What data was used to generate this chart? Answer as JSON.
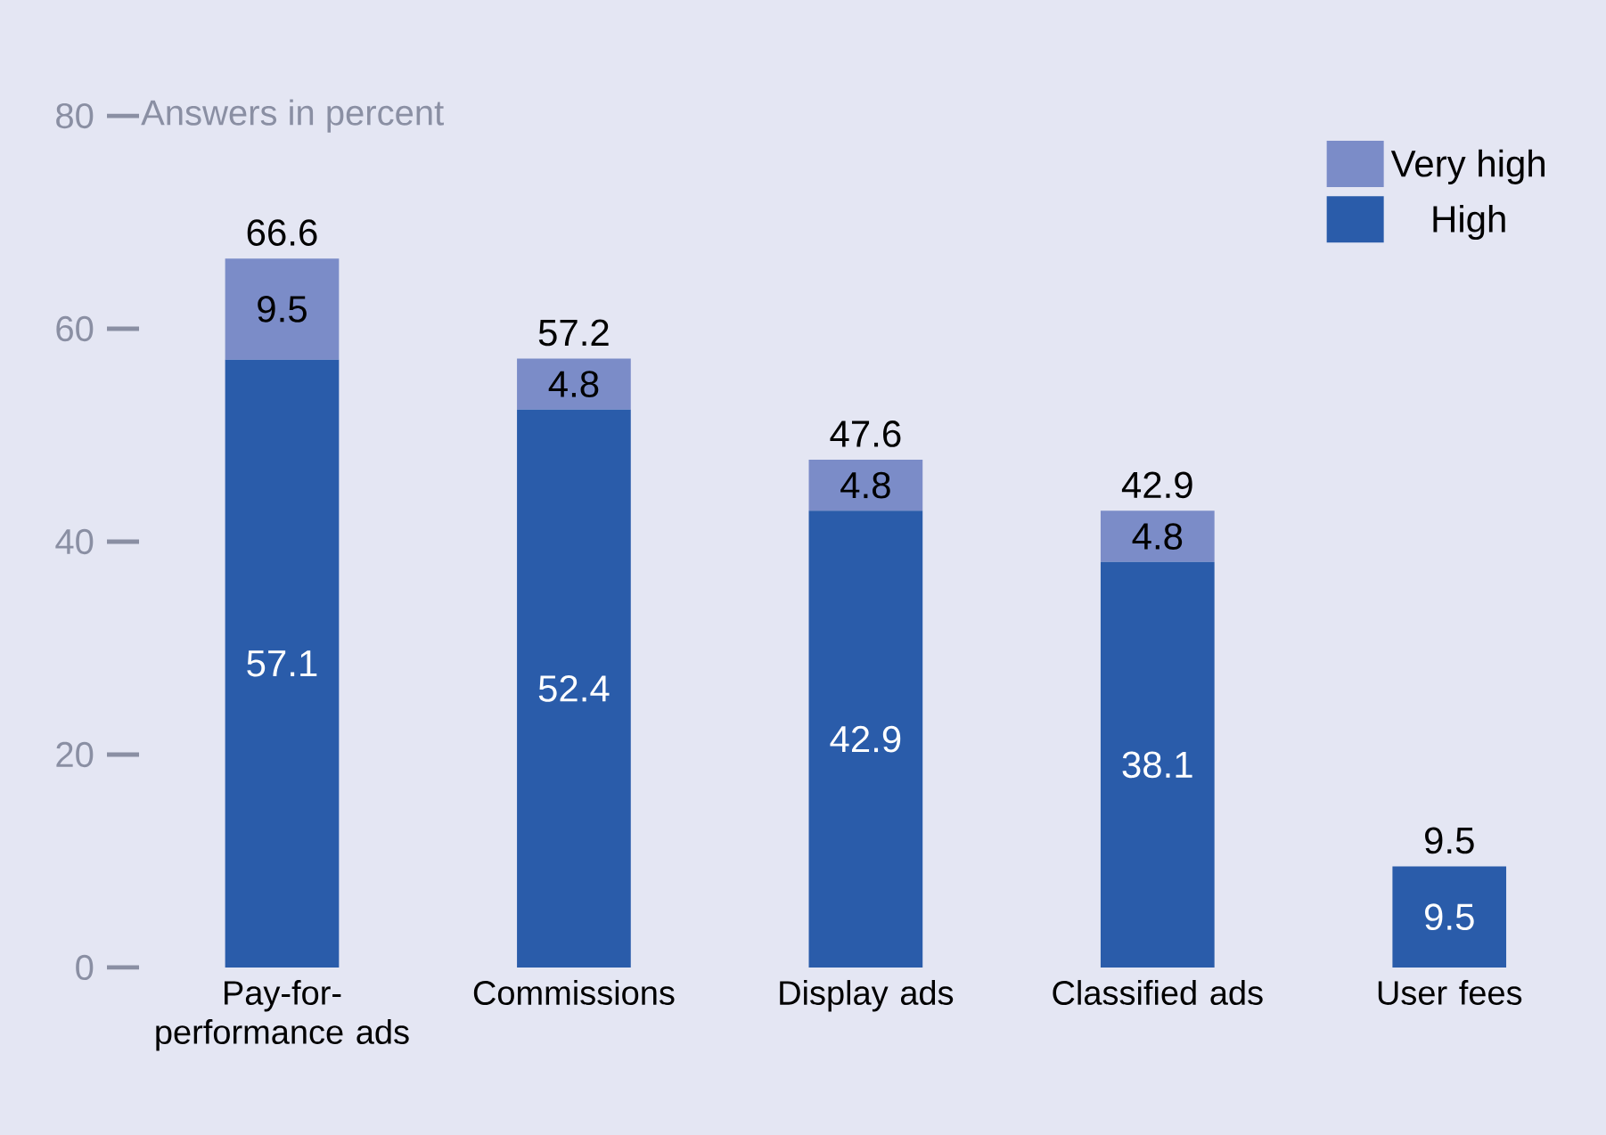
{
  "chart_data": {
    "type": "bar",
    "stacked": true,
    "ylabel": "Answers in percent",
    "categories": [
      "Pay-for-performance ads",
      "Commissions",
      "Display ads",
      "Classified ads",
      "User fees"
    ],
    "series": [
      {
        "name": "High",
        "color": "#2a5caa",
        "values": [
          57.1,
          52.4,
          42.9,
          38.1,
          9.5
        ]
      },
      {
        "name": "Very high",
        "color": "#7b8cc8",
        "values": [
          9.5,
          4.8,
          4.8,
          4.8,
          null
        ]
      }
    ],
    "totals": [
      "66.6",
      "57.2",
      "47.6",
      "42.9",
      "9.5"
    ],
    "data_labels": true,
    "ylim": [
      0,
      80
    ],
    "yticks": [
      0,
      20,
      40,
      60,
      80
    ],
    "legend": "top right",
    "grid": false
  }
}
